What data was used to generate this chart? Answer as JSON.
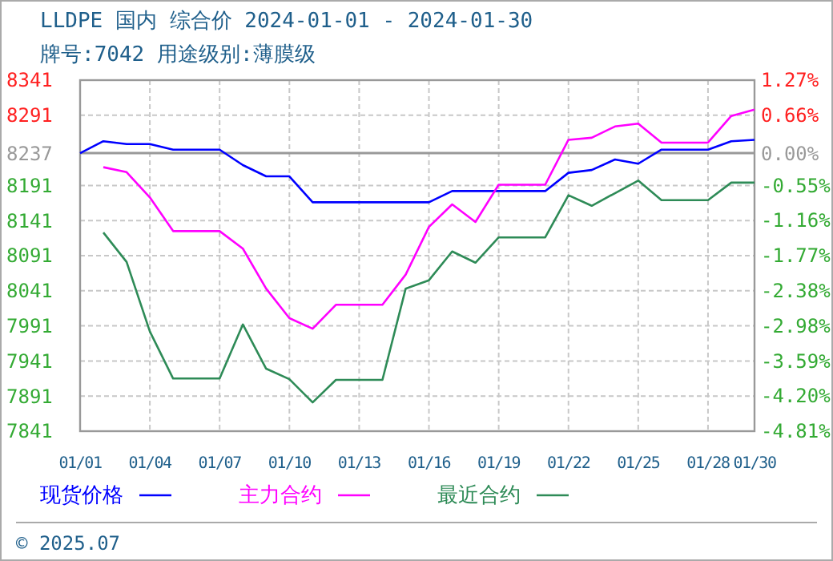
{
  "chart_data": {
    "type": "line",
    "title": "LLDPE 国内 综合价 2024-01-01 - 2024-01-30",
    "subtitle": "牌号:7042 用途级别:薄膜级",
    "annotations": [
      "© 2025.07"
    ],
    "x": [
      "2024-01-01",
      "2024-01-02",
      "2024-01-03",
      "2024-01-04",
      "2024-01-05",
      "2024-01-06",
      "2024-01-07",
      "2024-01-08",
      "2024-01-09",
      "2024-01-10",
      "2024-01-11",
      "2024-01-12",
      "2024-01-13",
      "2024-01-14",
      "2024-01-15",
      "2024-01-16",
      "2024-01-17",
      "2024-01-18",
      "2024-01-19",
      "2024-01-20",
      "2024-01-21",
      "2024-01-22",
      "2024-01-23",
      "2024-01-24",
      "2024-01-25",
      "2024-01-26",
      "2024-01-27",
      "2024-01-28",
      "2024-01-29",
      "2024-01-30"
    ],
    "series": [
      {
        "name": "现货价格",
        "color": "#0000ff",
        "values": [
          8237,
          8254,
          8250,
          8250,
          8242,
          8242,
          8242,
          8220,
          8204,
          8204,
          8167,
          8167,
          8167,
          8167,
          8167,
          8167,
          8183,
          8183,
          8183,
          8183,
          8183,
          8209,
          8213,
          8228,
          8222,
          8242,
          8242,
          8242,
          8254,
          8256
        ]
      },
      {
        "name": "主力合约",
        "color": "#ff00ff",
        "values": [
          null,
          8217,
          8210,
          8174,
          8126,
          8126,
          8126,
          8101,
          8044,
          8002,
          7987,
          8021,
          8021,
          8021,
          8064,
          8132,
          8164,
          8139,
          8192,
          8192,
          8192,
          8256,
          8259,
          8275,
          8279,
          8252,
          8252,
          8252,
          8290,
          8299
        ]
      },
      {
        "name": "最近合约",
        "color": "#2e8b57",
        "values": [
          null,
          8124,
          8082,
          7983,
          7916,
          7916,
          7916,
          7993,
          7930,
          7915,
          7882,
          7914,
          7914,
          7914,
          8044,
          8056,
          8097,
          8081,
          8117,
          8117,
          8117,
          8177,
          8162,
          8180,
          8198,
          8170,
          8170,
          8170,
          8195,
          8195
        ]
      }
    ],
    "xlim": [
      "2024-01-01",
      "2024-01-30"
    ],
    "xticks": [
      {
        "value": "2024-01-01",
        "label": "01/01"
      },
      {
        "value": "2024-01-04",
        "label": "01/04"
      },
      {
        "value": "2024-01-07",
        "label": "01/07"
      },
      {
        "value": "2024-01-10",
        "label": "01/10"
      },
      {
        "value": "2024-01-13",
        "label": "01/13"
      },
      {
        "value": "2024-01-16",
        "label": "01/16"
      },
      {
        "value": "2024-01-19",
        "label": "01/19"
      },
      {
        "value": "2024-01-22",
        "label": "01/22"
      },
      {
        "value": "2024-01-25",
        "label": "01/25"
      },
      {
        "value": "2024-01-28",
        "label": "01/28"
      },
      {
        "value": "2024-01-30",
        "label": "01/30"
      }
    ],
    "ylim": [
      7841,
      8341
    ],
    "yticks": [
      8341,
      8291,
      8237,
      8191,
      8141,
      8091,
      8041,
      7991,
      7941,
      7891,
      7841
    ],
    "y2lim": [
      -4.81,
      1.27
    ],
    "y2ticks": [
      {
        "value": 1.27,
        "label": "1.27%"
      },
      {
        "value": 0.66,
        "label": "0.66%"
      },
      {
        "value": 0,
        "label": "0.00%"
      },
      {
        "value": -0.55,
        "label": "-0.55%"
      },
      {
        "value": -1.16,
        "label": "-1.16%"
      },
      {
        "value": -1.77,
        "label": "-1.77%"
      },
      {
        "value": -2.38,
        "label": "-2.38%"
      },
      {
        "value": -2.98,
        "label": "-2.98%"
      },
      {
        "value": -3.59,
        "label": "-3.59%"
      },
      {
        "value": -4.2,
        "label": "-4.20%"
      },
      {
        "value": -4.81,
        "label": "-4.81%"
      }
    ],
    "ref_lines": [
      {
        "axis": "y",
        "value": 8237,
        "color": "#999999"
      }
    ],
    "grid": true,
    "legend": "bottom",
    "line_style": "solid"
  }
}
